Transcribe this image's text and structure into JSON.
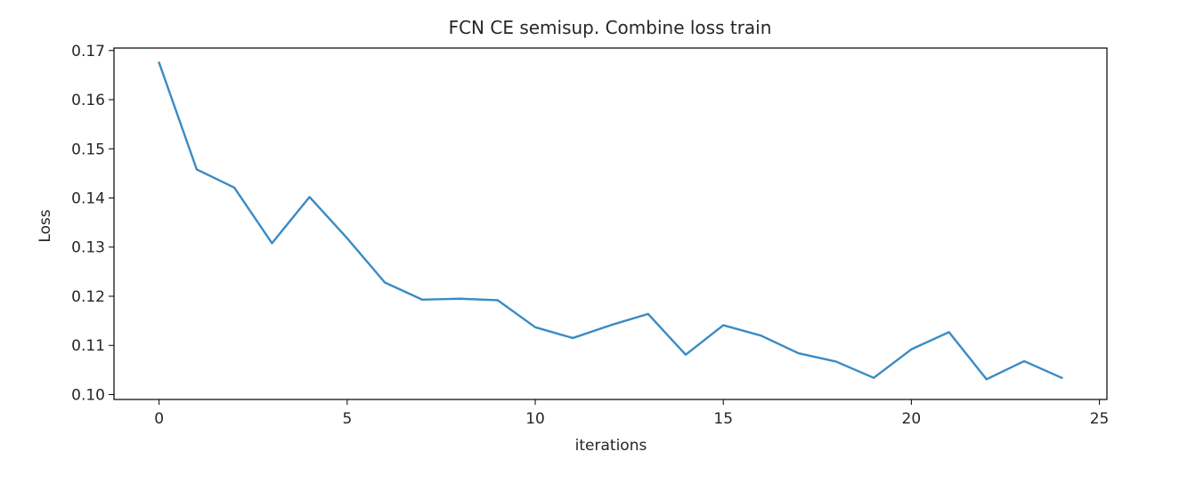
{
  "chart_data": {
    "type": "line",
    "title": "FCN CE semisup. Combine loss train",
    "xlabel": "iterations",
    "ylabel": "Loss",
    "xlim": [
      -1.2,
      25.2
    ],
    "ylim": [
      0.099,
      0.1705
    ],
    "xticks": [
      0,
      5,
      10,
      15,
      20,
      25
    ],
    "yticks": [
      0.1,
      0.11,
      0.12,
      0.13,
      0.14,
      0.15,
      0.16,
      0.17
    ],
    "xtick_labels": [
      "0",
      "5",
      "10",
      "15",
      "20",
      "25"
    ],
    "ytick_labels": [
      "0.10",
      "0.11",
      "0.12",
      "0.13",
      "0.14",
      "0.15",
      "0.16",
      "0.17"
    ],
    "grid": false,
    "series": [
      {
        "color": "#3a8bc4",
        "x": [
          0,
          1,
          2,
          3,
          4,
          5,
          6,
          7,
          8,
          9,
          10,
          11,
          12,
          13,
          14,
          15,
          16,
          17,
          18,
          19,
          20,
          21,
          22,
          23,
          24
        ],
        "values": [
          0.1675,
          0.1458,
          0.1421,
          0.1308,
          0.1402,
          0.1318,
          0.1228,
          0.1193,
          0.1195,
          0.1192,
          0.1137,
          0.1115,
          0.1141,
          0.1164,
          0.1081,
          0.1141,
          0.112,
          0.1084,
          0.1067,
          0.1034,
          0.1092,
          0.1127,
          0.1031,
          0.1068,
          0.1034
        ]
      }
    ]
  }
}
